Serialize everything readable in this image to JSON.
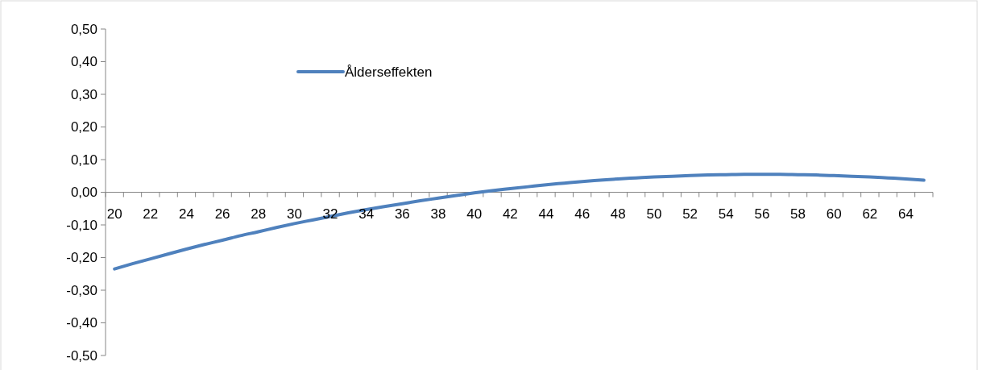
{
  "chart_data": {
    "type": "line",
    "categories": [
      "20",
      null,
      "22",
      null,
      "24",
      null,
      "26",
      null,
      "28",
      null,
      "30",
      null,
      "32",
      null,
      "34",
      null,
      "36",
      null,
      "38",
      null,
      "40",
      null,
      "42",
      null,
      "44",
      null,
      "46",
      null,
      "48",
      null,
      "50",
      null,
      "52",
      null,
      "54",
      null,
      "56",
      null,
      "58",
      null,
      "60",
      null,
      "62",
      null,
      "64",
      null
    ],
    "series": [
      {
        "name": "Ålderseffekten",
        "color": "#4f81bd",
        "values": [
          -0.235,
          -0.219,
          -0.204,
          -0.189,
          -0.174,
          -0.16,
          -0.147,
          -0.133,
          -0.121,
          -0.108,
          -0.096,
          -0.085,
          -0.074,
          -0.063,
          -0.053,
          -0.044,
          -0.035,
          -0.026,
          -0.018,
          -0.01,
          -0.002,
          0.005,
          0.011,
          0.017,
          0.023,
          0.028,
          0.033,
          0.037,
          0.041,
          0.044,
          0.047,
          0.049,
          0.051,
          0.053,
          0.054,
          0.055,
          0.055,
          0.055,
          0.054,
          0.053,
          0.051,
          0.049,
          0.047,
          0.044,
          0.041,
          0.037
        ]
      }
    ],
    "ylim": [
      -0.5,
      0.5
    ],
    "yticks": [
      {
        "value": -0.5,
        "label": "-0,50"
      },
      {
        "value": -0.4,
        "label": "-0,40"
      },
      {
        "value": -0.3,
        "label": "-0,30"
      },
      {
        "value": -0.2,
        "label": "-0,20"
      },
      {
        "value": -0.1,
        "label": "-0,10"
      },
      {
        "value": 0,
        "label": "0,00"
      },
      {
        "value": 0.1,
        "label": "0,10"
      },
      {
        "value": 0.2,
        "label": "0,20"
      },
      {
        "value": 0.3,
        "label": "0,30"
      },
      {
        "value": 0.4,
        "label": "0,40"
      },
      {
        "value": 0.5,
        "label": "0,50"
      }
    ],
    "legend": "top left",
    "grid": false,
    "marker": "none",
    "line_style": "solid"
  }
}
